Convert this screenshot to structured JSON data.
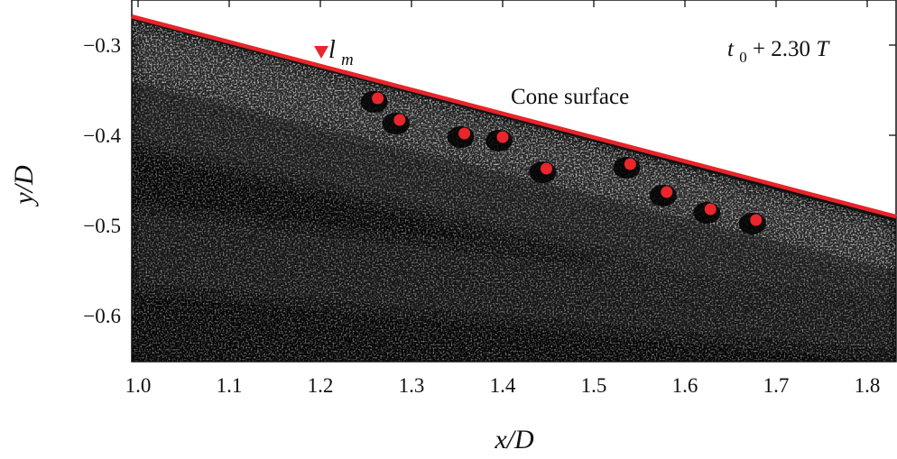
{
  "chart_data": {
    "type": "scatter",
    "xlabel": "x/D",
    "ylabel": "y/D",
    "xlim": [
      1.0,
      1.85
    ],
    "ylim": [
      -0.65,
      -0.25
    ],
    "x_ticks": [
      1.0,
      1.1,
      1.2,
      1.3,
      1.4,
      1.5,
      1.6,
      1.7,
      1.8
    ],
    "x_tick_labels": [
      "1.0",
      "1.1",
      "1.2",
      "1.3",
      "1.4",
      "1.5",
      "1.6",
      "1.7",
      "1.8"
    ],
    "y_ticks": [
      -0.3,
      -0.4,
      -0.5,
      -0.6
    ],
    "y_tick_labels": [
      "−0.3",
      "−0.4",
      "−0.5",
      "−0.6"
    ],
    "grid": false,
    "background": "grayscale particle image (schlieren-like), dark",
    "cone_surface": {
      "label": "Cone surface",
      "color": "#e8242a",
      "x": [
        1.0,
        1.85
      ],
      "y": [
        -0.27,
        -0.495
      ]
    },
    "points": {
      "color": "#e8262b",
      "marker": "circle",
      "x": [
        1.263,
        1.287,
        1.358,
        1.4,
        1.448,
        1.54,
        1.58,
        1.628,
        1.678
      ],
      "y": [
        -0.359,
        -0.383,
        -0.398,
        -0.402,
        -0.437,
        -0.432,
        -0.463,
        -0.482,
        -0.494
      ]
    },
    "lm_marker": {
      "label_base": "l",
      "label_sub": "m",
      "marker": "triangle-down",
      "color": "#e8262b",
      "x": 1.201,
      "y": -0.308
    },
    "time_label": {
      "t": "t",
      "sub": "0",
      "rest": " + 2.30",
      "T": "T"
    }
  }
}
